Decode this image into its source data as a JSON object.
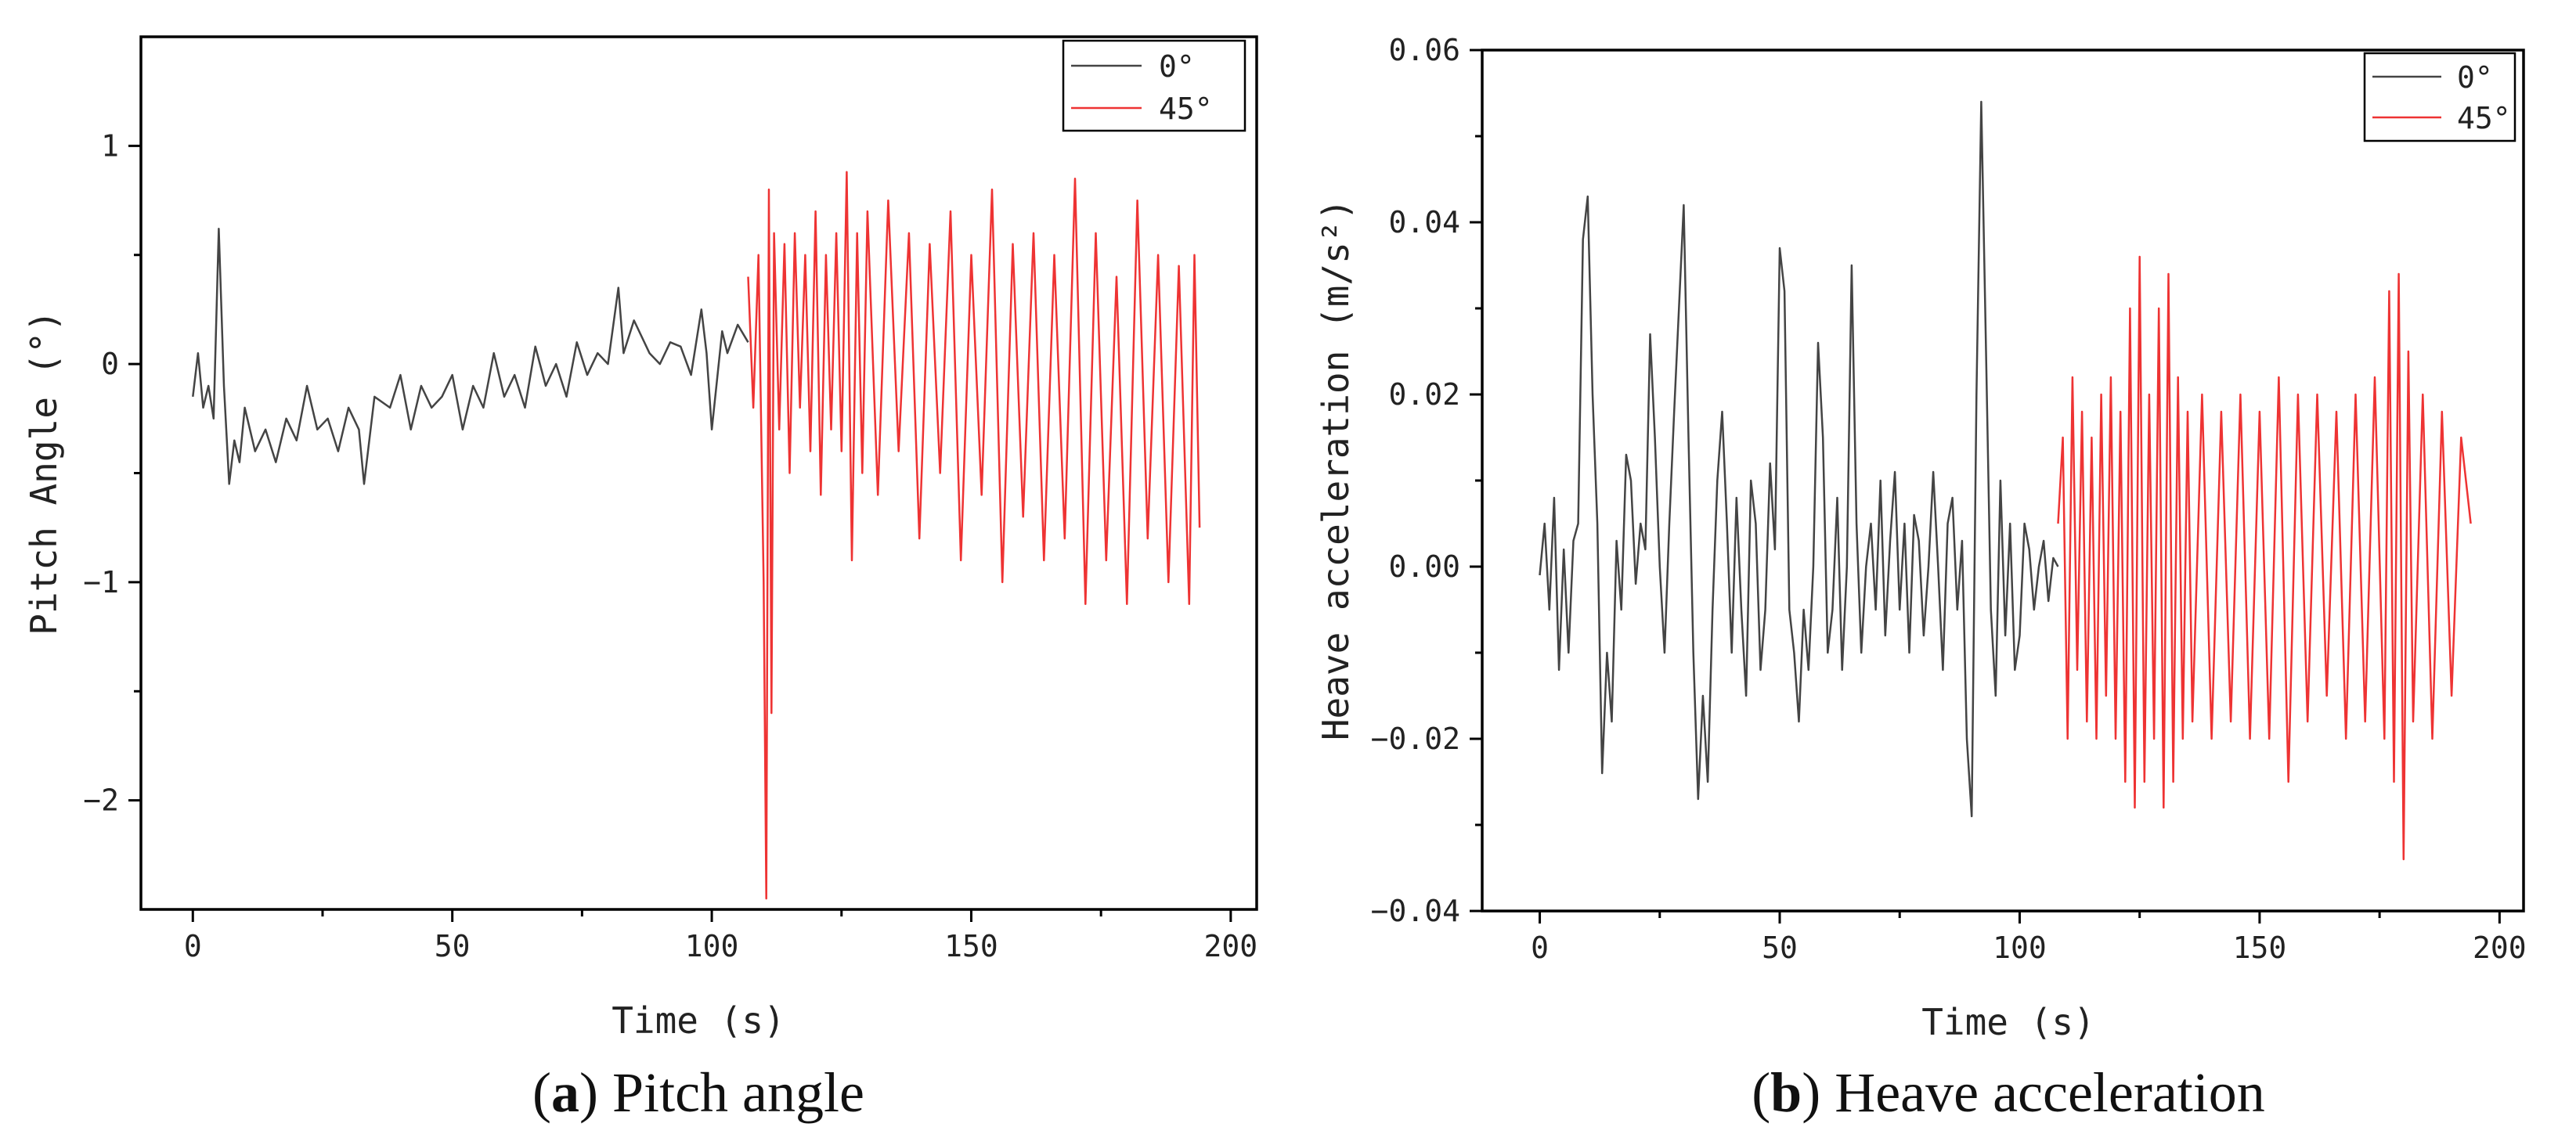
{
  "chart_data": [
    {
      "type": "line",
      "caption_letter": "a",
      "caption_text": "Pitch angle",
      "xlabel": "Time (s)",
      "ylabel": "Pitch Angle (°)",
      "xlim": [
        -10,
        205
      ],
      "ylim": [
        -2.5,
        1.5
      ],
      "xticks": [
        0,
        50,
        100,
        150,
        200
      ],
      "xtick_labels": [
        "0",
        "50",
        "100",
        "150",
        "200"
      ],
      "yticks": [
        -2,
        -1,
        0,
        1
      ],
      "ytick_labels": [
        "−2",
        "−1",
        "0",
        "1"
      ],
      "legend_position": "top-right",
      "series": [
        {
          "name": "0°",
          "color": "#444444",
          "x": [
            0,
            1,
            2,
            3,
            4,
            5,
            6,
            7,
            8,
            9,
            10,
            12,
            14,
            16,
            18,
            20,
            22,
            24,
            26,
            28,
            30,
            32,
            33,
            35,
            38,
            40,
            42,
            44,
            46,
            48,
            50,
            52,
            54,
            56,
            58,
            60,
            62,
            64,
            66,
            68,
            70,
            72,
            74,
            76,
            78,
            80,
            82,
            83,
            85,
            88,
            90,
            92,
            94,
            96,
            98,
            99,
            100,
            102,
            103,
            105,
            107
          ],
          "values": [
            -0.15,
            0.05,
            -0.2,
            -0.1,
            -0.25,
            0.62,
            -0.1,
            -0.55,
            -0.35,
            -0.45,
            -0.2,
            -0.4,
            -0.3,
            -0.45,
            -0.25,
            -0.35,
            -0.1,
            -0.3,
            -0.25,
            -0.4,
            -0.2,
            -0.3,
            -0.55,
            -0.15,
            -0.2,
            -0.05,
            -0.3,
            -0.1,
            -0.2,
            -0.15,
            -0.05,
            -0.3,
            -0.1,
            -0.2,
            0.05,
            -0.15,
            -0.05,
            -0.2,
            0.08,
            -0.1,
            0.0,
            -0.15,
            0.1,
            -0.05,
            0.05,
            0.0,
            0.35,
            0.05,
            0.2,
            0.05,
            0.0,
            0.1,
            0.08,
            -0.05,
            0.25,
            0.05,
            -0.3,
            0.15,
            0.05,
            0.18,
            0.1
          ]
        },
        {
          "name": "45°",
          "color": "#ee3333",
          "x": [
            107,
            108,
            109,
            110,
            110.5,
            111,
            111.5,
            112,
            113,
            114,
            115,
            116,
            117,
            118,
            119,
            120,
            121,
            122,
            123,
            124,
            125,
            126,
            127,
            128,
            129,
            130,
            132,
            134,
            136,
            138,
            140,
            142,
            144,
            146,
            148,
            150,
            152,
            154,
            156,
            158,
            160,
            162,
            164,
            166,
            168,
            170,
            172,
            174,
            176,
            178,
            180,
            182,
            184,
            186,
            188,
            190,
            192,
            193,
            194
          ],
          "values": [
            0.4,
            -0.2,
            0.5,
            -1.0,
            -2.45,
            0.8,
            -1.6,
            0.6,
            -0.3,
            0.55,
            -0.5,
            0.6,
            -0.2,
            0.5,
            -0.4,
            0.7,
            -0.6,
            0.5,
            -0.3,
            0.6,
            -0.4,
            0.88,
            -0.9,
            0.6,
            -0.5,
            0.7,
            -0.6,
            0.75,
            -0.4,
            0.6,
            -0.8,
            0.55,
            -0.5,
            0.7,
            -0.9,
            0.5,
            -0.6,
            0.8,
            -1.0,
            0.55,
            -0.7,
            0.6,
            -0.9,
            0.5,
            -0.8,
            0.85,
            -1.1,
            0.6,
            -0.9,
            0.4,
            -1.1,
            0.75,
            -0.8,
            0.5,
            -1.0,
            0.45,
            -1.1,
            0.5,
            -0.75
          ]
        }
      ]
    },
    {
      "type": "line",
      "caption_letter": "b",
      "caption_text": "Heave acceleration",
      "xlabel": "Time (s)",
      "ylabel": "Heave acceleration (m/s²)",
      "xlim": [
        -12,
        205
      ],
      "ylim": [
        -0.04,
        0.06
      ],
      "xticks": [
        0,
        50,
        100,
        150,
        200
      ],
      "xtick_labels": [
        "0",
        "50",
        "100",
        "150",
        "200"
      ],
      "yticks": [
        -0.04,
        -0.02,
        0.0,
        0.02,
        0.04,
        0.06
      ],
      "ytick_labels": [
        "−0.04",
        "−0.02",
        "0.00",
        "0.02",
        "0.04",
        "0.06"
      ],
      "legend_position": "top-right",
      "series": [
        {
          "name": "0°",
          "color": "#444444",
          "x": [
            0,
            1,
            2,
            3,
            4,
            5,
            6,
            7,
            8,
            9,
            10,
            11,
            12,
            13,
            14,
            15,
            16,
            17,
            18,
            19,
            20,
            21,
            22,
            23,
            24,
            25,
            26,
            27,
            28,
            29,
            30,
            31,
            32,
            33,
            34,
            35,
            36,
            37,
            38,
            39,
            40,
            41,
            42,
            43,
            44,
            45,
            46,
            47,
            48,
            49,
            50,
            51,
            52,
            53,
            54,
            55,
            56,
            57,
            58,
            59,
            60,
            61,
            62,
            63,
            64,
            65,
            66,
            67,
            68,
            69,
            70,
            71,
            72,
            73,
            74,
            75,
            76,
            77,
            78,
            79,
            80,
            81,
            82,
            83,
            84,
            85,
            86,
            87,
            88,
            89,
            90,
            91,
            92,
            93,
            94,
            95,
            96,
            97,
            98,
            99,
            100,
            101,
            102,
            103,
            104,
            105,
            106,
            107,
            108
          ],
          "values": [
            -0.001,
            0.005,
            -0.005,
            0.008,
            -0.012,
            0.002,
            -0.01,
            0.003,
            0.005,
            0.038,
            0.043,
            0.02,
            0.005,
            -0.024,
            -0.01,
            -0.018,
            0.003,
            -0.005,
            0.013,
            0.01,
            -0.002,
            0.005,
            0.002,
            0.027,
            0.015,
            0.0,
            -0.01,
            0.005,
            0.018,
            0.03,
            0.042,
            0.015,
            -0.01,
            -0.027,
            -0.015,
            -0.025,
            -0.005,
            0.01,
            0.018,
            0.005,
            -0.01,
            0.008,
            -0.005,
            -0.015,
            0.01,
            0.005,
            -0.012,
            -0.005,
            0.012,
            0.002,
            0.037,
            0.032,
            -0.005,
            -0.01,
            -0.018,
            -0.005,
            -0.012,
            0.0,
            0.026,
            0.015,
            -0.01,
            -0.005,
            0.008,
            -0.012,
            0.0,
            0.035,
            0.005,
            -0.01,
            0.0,
            0.005,
            -0.005,
            0.01,
            -0.008,
            0.003,
            0.011,
            -0.005,
            0.005,
            -0.01,
            0.006,
            0.003,
            -0.008,
            0.0,
            0.011,
            0.0,
            -0.012,
            0.005,
            0.008,
            -0.005,
            0.003,
            -0.02,
            -0.029,
            0.02,
            0.054,
            0.025,
            -0.005,
            -0.015,
            0.01,
            -0.008,
            0.005,
            -0.012,
            -0.008,
            0.005,
            0.002,
            -0.005,
            0.0,
            0.003,
            -0.004,
            0.001,
            0.0
          ]
        },
        {
          "name": "45°",
          "color": "#ee3333",
          "x": [
            108,
            109,
            110,
            111,
            112,
            113,
            114,
            115,
            116,
            117,
            118,
            119,
            120,
            121,
            122,
            123,
            124,
            125,
            126,
            127,
            128,
            129,
            130,
            131,
            132,
            133,
            134,
            135,
            136,
            138,
            140,
            142,
            144,
            146,
            148,
            150,
            152,
            154,
            156,
            158,
            160,
            162,
            164,
            166,
            168,
            170,
            172,
            174,
            176,
            177,
            178,
            179,
            180,
            181,
            182,
            184,
            186,
            188,
            190,
            192,
            194
          ],
          "values": [
            0.005,
            0.015,
            -0.02,
            0.022,
            -0.012,
            0.018,
            -0.018,
            0.015,
            -0.02,
            0.02,
            -0.015,
            0.022,
            -0.02,
            0.018,
            -0.025,
            0.03,
            -0.028,
            0.036,
            -0.025,
            0.02,
            -0.02,
            0.03,
            -0.028,
            0.034,
            -0.025,
            0.022,
            -0.02,
            0.018,
            -0.018,
            0.02,
            -0.02,
            0.018,
            -0.018,
            0.02,
            -0.02,
            0.018,
            -0.02,
            0.022,
            -0.025,
            0.02,
            -0.018,
            0.02,
            -0.015,
            0.018,
            -0.02,
            0.02,
            -0.018,
            0.022,
            -0.02,
            0.032,
            -0.025,
            0.034,
            -0.034,
            0.025,
            -0.018,
            0.02,
            -0.02,
            0.018,
            -0.015,
            0.015,
            0.005
          ]
        }
      ]
    }
  ]
}
